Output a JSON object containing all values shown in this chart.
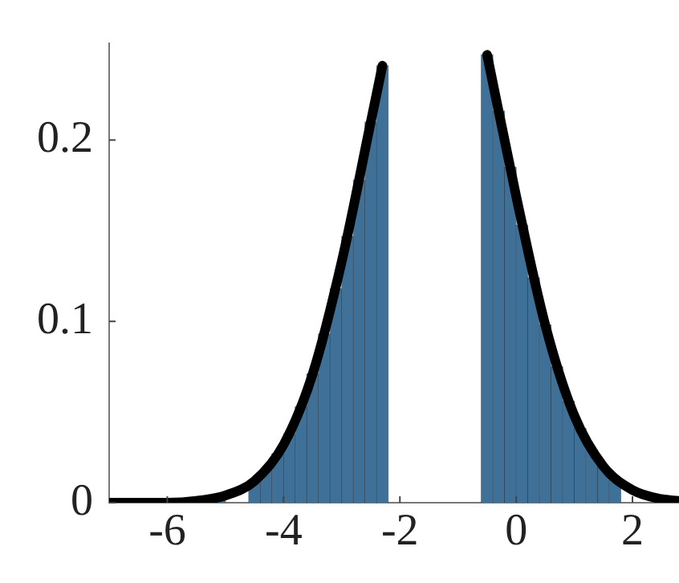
{
  "chart_data": {
    "type": "histogram",
    "bins": [
      -7.0,
      -6.8,
      -6.6,
      -6.4,
      -6.2,
      -6.0,
      -5.8,
      -5.6,
      -5.4,
      -5.2,
      -5.0,
      -4.8,
      -4.6,
      -4.4,
      -4.2,
      -4.0,
      -3.8,
      -3.6,
      -3.4,
      -3.2,
      -3.0,
      -2.8,
      -2.6,
      -2.4,
      -2.2,
      -2.0,
      -1.8,
      -1.6,
      -1.4,
      -1.2,
      -1.0,
      -0.8,
      -0.6,
      -0.4,
      -0.2,
      0.0,
      0.2,
      0.4,
      0.6,
      0.8,
      1.0,
      1.2,
      1.4,
      1.6,
      1.8,
      2.0,
      2.2,
      2.4,
      2.6,
      2.8
    ],
    "values": [
      null,
      null,
      null,
      null,
      null,
      null,
      null,
      null,
      null,
      0.003,
      null,
      null,
      0.012,
      0.018,
      0.027,
      0.038,
      0.053,
      0.071,
      0.093,
      0.118,
      0.147,
      0.178,
      0.21,
      0.241,
      null,
      null,
      null,
      null,
      null,
      null,
      null,
      null,
      0.247,
      0.216,
      0.185,
      0.153,
      0.124,
      0.098,
      0.075,
      0.056,
      0.041,
      0.029,
      0.02,
      0.013,
      null,
      null,
      null,
      null,
      null
    ],
    "color": "#3f7198",
    "series": [
      {
        "type": "line",
        "color": "#000000",
        "x": [
          -7,
          -6,
          -5.5,
          -5,
          -4.5,
          -4,
          -3.5,
          -3,
          -2.5,
          -2.3,
          -1.38,
          -0.5,
          0,
          0.5,
          1,
          1.5,
          2,
          2.5,
          2.8
        ],
        "values": [
          0.0,
          0.0,
          0.001,
          0.004,
          0.012,
          0.032,
          0.071,
          0.133,
          0.21,
          0.241,
          null,
          0.247,
          0.169,
          0.098,
          0.048,
          0.02,
          0.007,
          0.002,
          0.001
        ]
      }
    ],
    "xlim": [
      -7,
      2.8
    ],
    "ylim": [
      0,
      0.2535
    ],
    "xticks": [
      -6,
      -4,
      -2,
      0,
      2
    ],
    "yticks": [
      0,
      0.1,
      0.2
    ],
    "grid": false
  }
}
